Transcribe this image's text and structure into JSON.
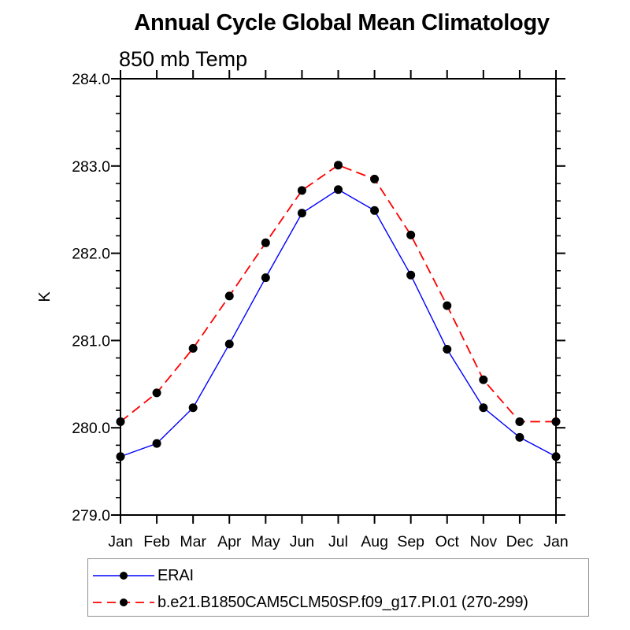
{
  "title": "Annual Cycle Global Mean Climatology",
  "subtitle": "850 mb Temp",
  "ylabel": "K",
  "legend": {
    "position": "bottom",
    "entries": [
      {
        "label": "ERAI",
        "color": "#0000ff",
        "style": "solid",
        "marker": "filled-circle",
        "marker_color": "#000000"
      },
      {
        "label": "b.e21.B1850CAM5CLM50SP.f09_g17.PI.01 (270-299)",
        "color": "#ff0000",
        "style": "dashed",
        "marker": "filled-circle",
        "marker_color": "#000000"
      }
    ]
  },
  "chart_data": {
    "type": "line",
    "title": "Annual Cycle Global Mean Climatology",
    "subtitle": "850 mb Temp",
    "xlabel": "",
    "ylabel": "K",
    "categories": [
      "Jan",
      "Feb",
      "Mar",
      "Apr",
      "May",
      "Jun",
      "Jul",
      "Aug",
      "Sep",
      "Oct",
      "Nov",
      "Dec",
      "Jan"
    ],
    "series": [
      {
        "name": "ERAI",
        "color": "#0000ff",
        "style": "solid",
        "marker": "filled-circle",
        "marker_color": "#000000",
        "values": [
          279.67,
          279.82,
          280.23,
          280.96,
          281.72,
          282.46,
          282.73,
          282.49,
          281.75,
          280.9,
          280.23,
          279.89,
          279.67
        ]
      },
      {
        "name": "b.e21.B1850CAM5CLM50SP.f09_g17.PI.01 (270-299)",
        "color": "#ff0000",
        "style": "dashed",
        "marker": "filled-circle",
        "marker_color": "#000000",
        "values": [
          280.07,
          280.4,
          280.91,
          281.51,
          282.12,
          282.72,
          283.01,
          282.85,
          282.21,
          281.4,
          280.55,
          280.07,
          280.07
        ]
      }
    ],
    "ylim": [
      279.0,
      284.0
    ],
    "y_major_step": 1.0,
    "y_minor_step": 0.2,
    "y_tick_labels": [
      "279.0",
      "280.0",
      "281.0",
      "282.0",
      "283.0",
      "284.0"
    ],
    "grid": false,
    "frame": true,
    "tick_direction": "out",
    "legend_position": "bottom"
  }
}
